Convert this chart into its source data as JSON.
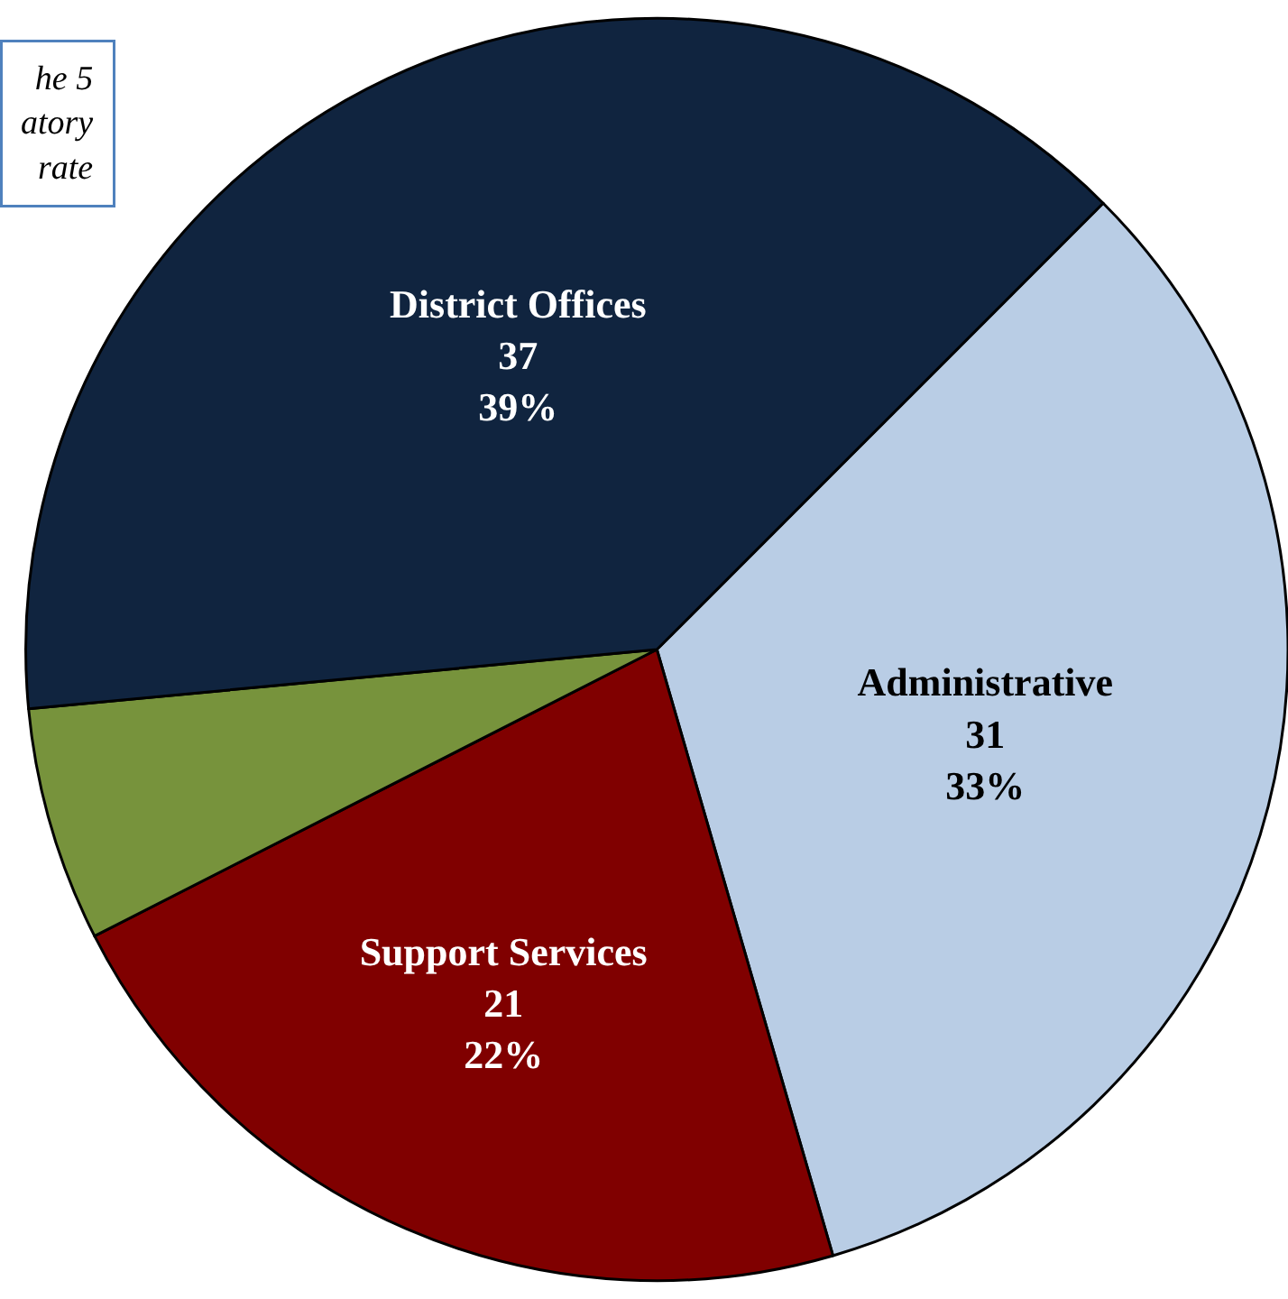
{
  "chart_data": {
    "type": "pie",
    "categories": [
      "Administrative",
      "Support Services",
      null,
      "District Offices"
    ],
    "values": [
      33,
      22,
      6,
      39
    ],
    "colors": [
      "#b9cde5",
      "#800000",
      "#77933c",
      "#10243f"
    ],
    "value_labels": [
      "31\n33%",
      "21\n22%",
      null,
      "37\n39%"
    ],
    "annotations": [
      "he 5\natory\nrate"
    ],
    "legend": false
  }
}
